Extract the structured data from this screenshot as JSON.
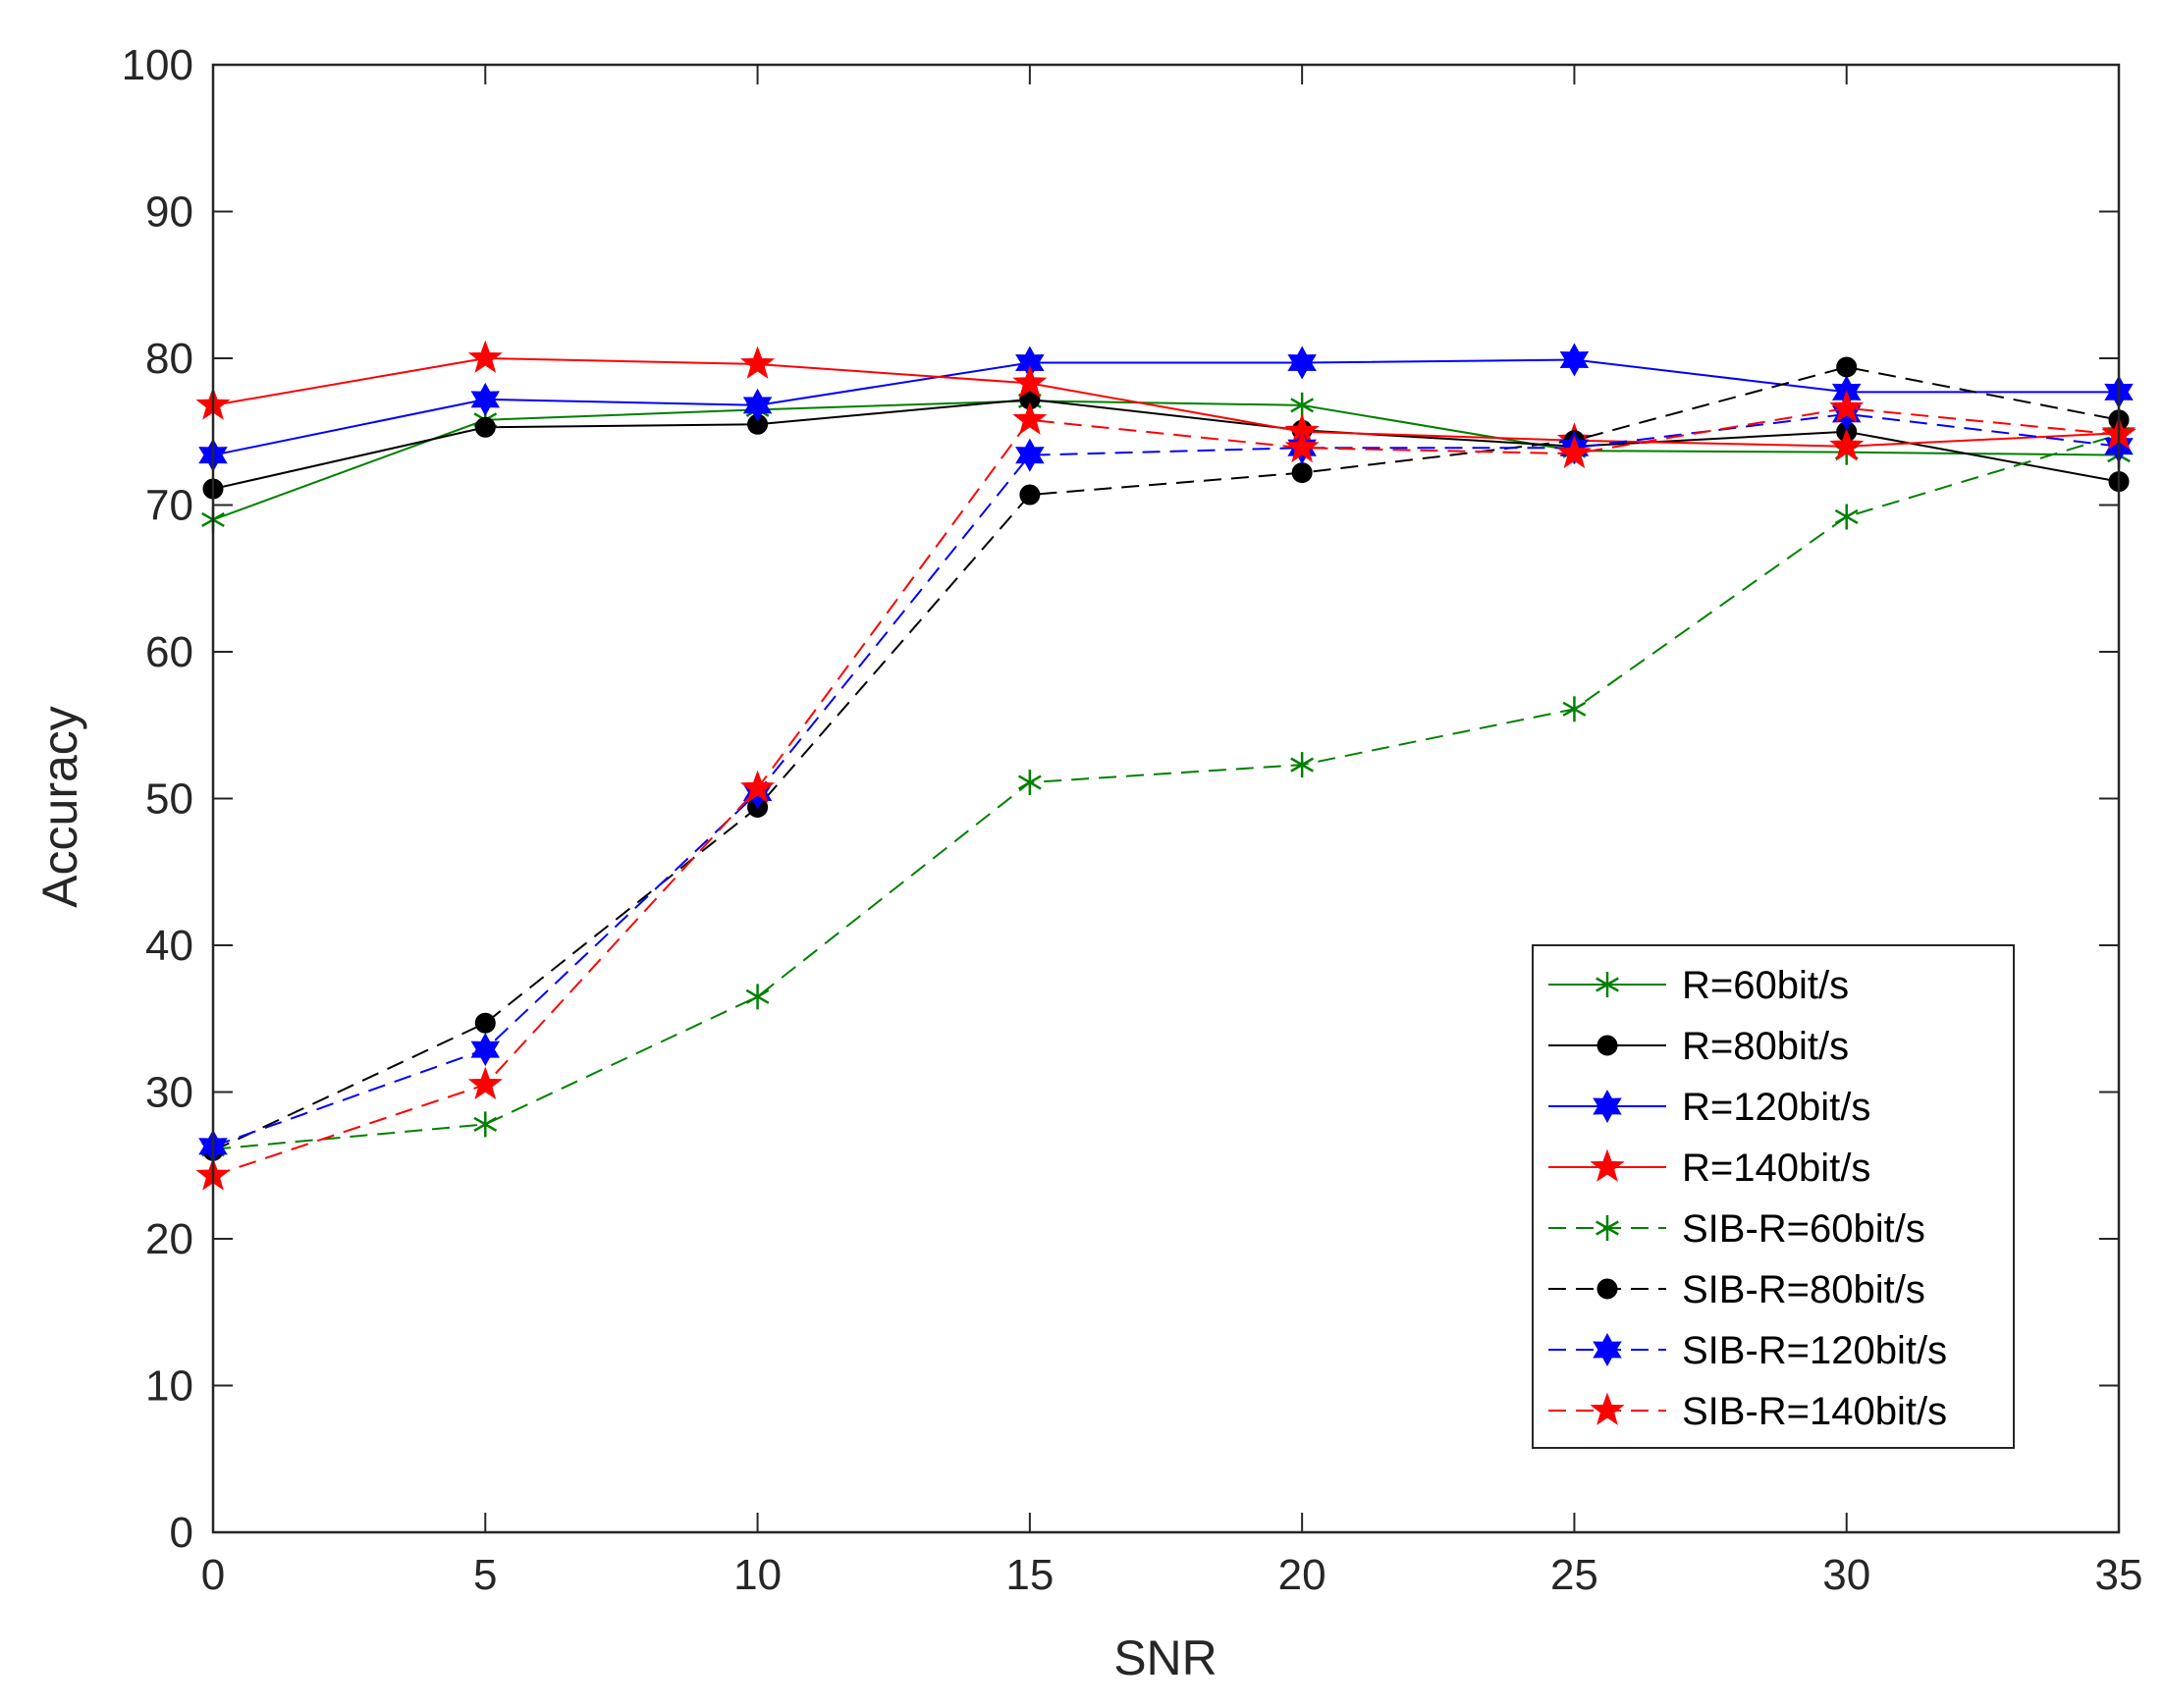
{
  "chart_data": {
    "type": "line",
    "title": "",
    "xlabel": "SNR",
    "ylabel": "Accuracy",
    "xlim": [
      0,
      35
    ],
    "ylim": [
      0,
      100
    ],
    "xticks": [
      0,
      5,
      10,
      15,
      20,
      25,
      30,
      35
    ],
    "yticks": [
      0,
      10,
      20,
      30,
      40,
      50,
      60,
      70,
      80,
      90,
      100
    ],
    "grid": false,
    "legend_position": "lower-right",
    "x": [
      0,
      5,
      10,
      15,
      20,
      25,
      30,
      35
    ],
    "series": [
      {
        "name": "R=60bit/s",
        "color": "#008000",
        "dash": "solid",
        "marker": "asterisk",
        "values": [
          69.0,
          75.8,
          76.5,
          77.1,
          76.8,
          73.7,
          73.6,
          73.4
        ]
      },
      {
        "name": "R=80bit/s",
        "color": "#000000",
        "dash": "solid",
        "marker": "circle",
        "values": [
          71.1,
          75.3,
          75.5,
          77.2,
          75.1,
          74.0,
          75.0,
          71.6
        ]
      },
      {
        "name": "R=120bit/s",
        "color": "#0000ff",
        "dash": "solid",
        "marker": "hexagram",
        "values": [
          73.4,
          77.2,
          76.8,
          79.7,
          79.7,
          79.9,
          77.7,
          77.7
        ]
      },
      {
        "name": "R=140bit/s",
        "color": "#ff0000",
        "dash": "solid",
        "marker": "pentagram",
        "values": [
          76.8,
          80.0,
          79.6,
          78.3,
          75.0,
          74.4,
          74.0,
          74.9
        ]
      },
      {
        "name": "SIB-R=60bit/s",
        "color": "#008000",
        "dash": "dashed",
        "marker": "asterisk",
        "values": [
          26.1,
          27.8,
          36.5,
          51.1,
          52.3,
          56.1,
          69.2,
          74.8
        ]
      },
      {
        "name": "SIB-R=80bit/s",
        "color": "#000000",
        "dash": "dashed",
        "marker": "circle",
        "values": [
          26.0,
          34.7,
          49.4,
          70.7,
          72.2,
          74.4,
          79.4,
          75.8
        ]
      },
      {
        "name": "SIB-R=120bit/s",
        "color": "#0000ff",
        "dash": "dashed",
        "marker": "hexagram",
        "values": [
          26.3,
          32.9,
          50.4,
          73.4,
          73.9,
          73.9,
          76.2,
          74.0
        ]
      },
      {
        "name": "SIB-R=140bit/s",
        "color": "#ff0000",
        "dash": "dashed",
        "marker": "pentagram",
        "values": [
          24.3,
          30.5,
          50.7,
          75.8,
          73.9,
          73.5,
          76.6,
          74.8
        ]
      }
    ]
  }
}
